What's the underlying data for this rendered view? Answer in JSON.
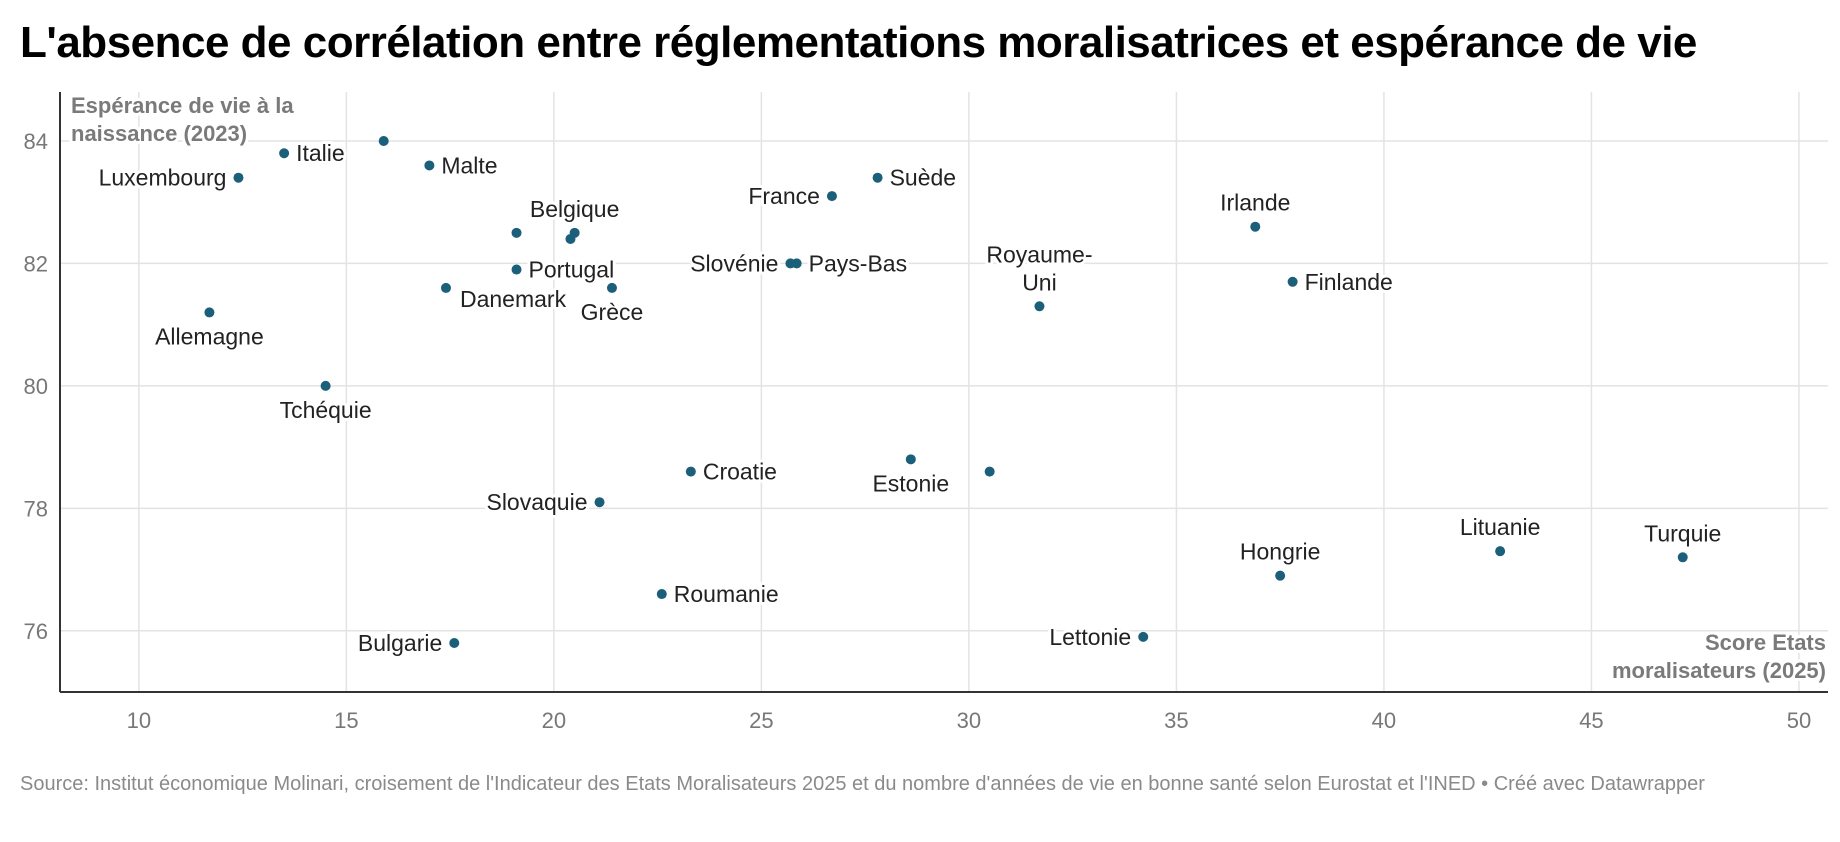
{
  "title": "L'absence de corrélation entre réglementations moralisatrices et espérance de vie",
  "source": "Source: Institut économique Molinari, croisement de l'Indicateur des Etats Moralisateurs 2025 et du nombre d'années de vie en bonne santé selon Eurostat et l'INED • Créé avec Datawrapper",
  "colors": {
    "point": "#1c5f7a",
    "grid": "#e3e3e3",
    "axis": "#333333",
    "label": "#222222",
    "muted": "#7a7a7a"
  },
  "chart_data": {
    "type": "scatter",
    "title": "L'absence de corrélation entre réglementations moralisatrices et espérance de vie",
    "ylabel_lines": [
      "Espérance de vie à la",
      "naissance (2023)"
    ],
    "xlabel_lines": [
      "Score Etats",
      "moralisateurs (2025)"
    ],
    "xlim": [
      8.1,
      50.7
    ],
    "ylim": [
      75.0,
      84.8
    ],
    "xticks": [
      10,
      15,
      20,
      25,
      30,
      35,
      40,
      45,
      50
    ],
    "yticks": [
      76,
      78,
      80,
      82,
      84
    ],
    "grid": true,
    "points": [
      {
        "x": 15.9,
        "y": 84.0,
        "label": ""
      },
      {
        "x": 13.5,
        "y": 83.8,
        "label": "Italie",
        "pos": "right"
      },
      {
        "x": 17.0,
        "y": 83.6,
        "label": "Malte",
        "pos": "right"
      },
      {
        "x": 12.4,
        "y": 83.4,
        "label": "Luxembourg",
        "pos": "left"
      },
      {
        "x": 27.8,
        "y": 83.4,
        "label": "Suède",
        "pos": "right"
      },
      {
        "x": 26.7,
        "y": 83.1,
        "label": "France",
        "pos": "left"
      },
      {
        "x": 36.9,
        "y": 82.6,
        "label": "Irlande",
        "pos": "top"
      },
      {
        "x": 19.1,
        "y": 82.5,
        "label": ""
      },
      {
        "x": 20.5,
        "y": 82.5,
        "label": "Belgique",
        "pos": "top"
      },
      {
        "x": 20.4,
        "y": 82.4,
        "label": ""
      },
      {
        "x": 25.7,
        "y": 82.0,
        "label": "Slovénie",
        "pos": "left"
      },
      {
        "x": 25.85,
        "y": 82.0,
        "label": "Pays-Bas",
        "pos": "right"
      },
      {
        "x": 19.1,
        "y": 81.9,
        "label": "Portugal",
        "pos": "right"
      },
      {
        "x": 37.8,
        "y": 81.7,
        "label": "Finlande",
        "pos": "right"
      },
      {
        "x": 17.4,
        "y": 81.6,
        "label": "Danemark",
        "pos": "below-right"
      },
      {
        "x": 21.4,
        "y": 81.6,
        "label": "Grèce",
        "pos": "bottom"
      },
      {
        "x": 31.7,
        "y": 81.3,
        "label": "Royaume-Uni",
        "label_lines": [
          "Royaume-",
          "Uni"
        ],
        "pos": "top"
      },
      {
        "x": 11.7,
        "y": 81.2,
        "label": "Allemagne",
        "pos": "bottom"
      },
      {
        "x": 14.5,
        "y": 80.0,
        "label": "Tchéquie",
        "pos": "bottom"
      },
      {
        "x": 28.6,
        "y": 78.8,
        "label": "Estonie",
        "pos": "bottom"
      },
      {
        "x": 23.3,
        "y": 78.6,
        "label": "Croatie",
        "pos": "right"
      },
      {
        "x": 30.5,
        "y": 78.6,
        "label": ""
      },
      {
        "x": 21.1,
        "y": 78.1,
        "label": "Slovaquie",
        "pos": "left"
      },
      {
        "x": 42.8,
        "y": 77.3,
        "label": "Lituanie",
        "pos": "top"
      },
      {
        "x": 47.2,
        "y": 77.2,
        "label": "Turquie",
        "pos": "top"
      },
      {
        "x": 37.5,
        "y": 76.9,
        "label": "Hongrie",
        "pos": "top"
      },
      {
        "x": 22.6,
        "y": 76.6,
        "label": "Roumanie",
        "pos": "right"
      },
      {
        "x": 34.2,
        "y": 75.9,
        "label": "Lettonie",
        "pos": "left"
      },
      {
        "x": 17.6,
        "y": 75.8,
        "label": "Bulgarie",
        "pos": "left"
      }
    ]
  }
}
